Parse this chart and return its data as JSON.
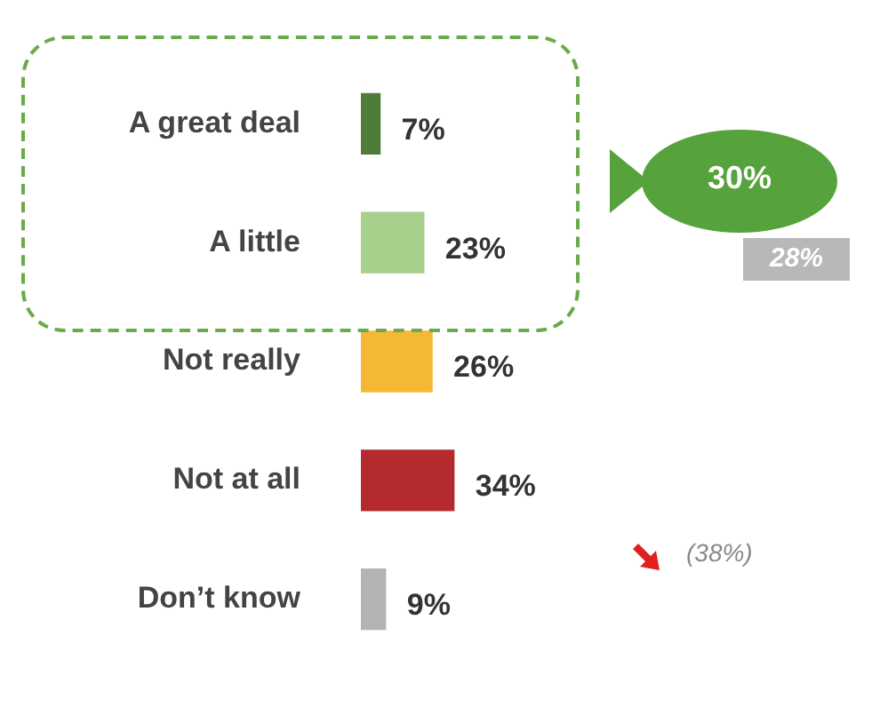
{
  "chart_data": {
    "type": "bar",
    "orientation": "horizontal",
    "categories": [
      "A great deal",
      "A little",
      "Not really",
      "Not at all",
      "Don’t know"
    ],
    "values": [
      7,
      23,
      26,
      34,
      9
    ],
    "colors": [
      "#4e7d3a",
      "#a6d08c",
      "#f4b834",
      "#b52a2e",
      "#b3b3b3"
    ],
    "value_labels": [
      "7%",
      "23%",
      "26%",
      "34%",
      "9%"
    ],
    "tick_labels": "y",
    "grid": false,
    "legend": false,
    "annotations": [
      "30%",
      "28%",
      "(38%)"
    ]
  }
}
